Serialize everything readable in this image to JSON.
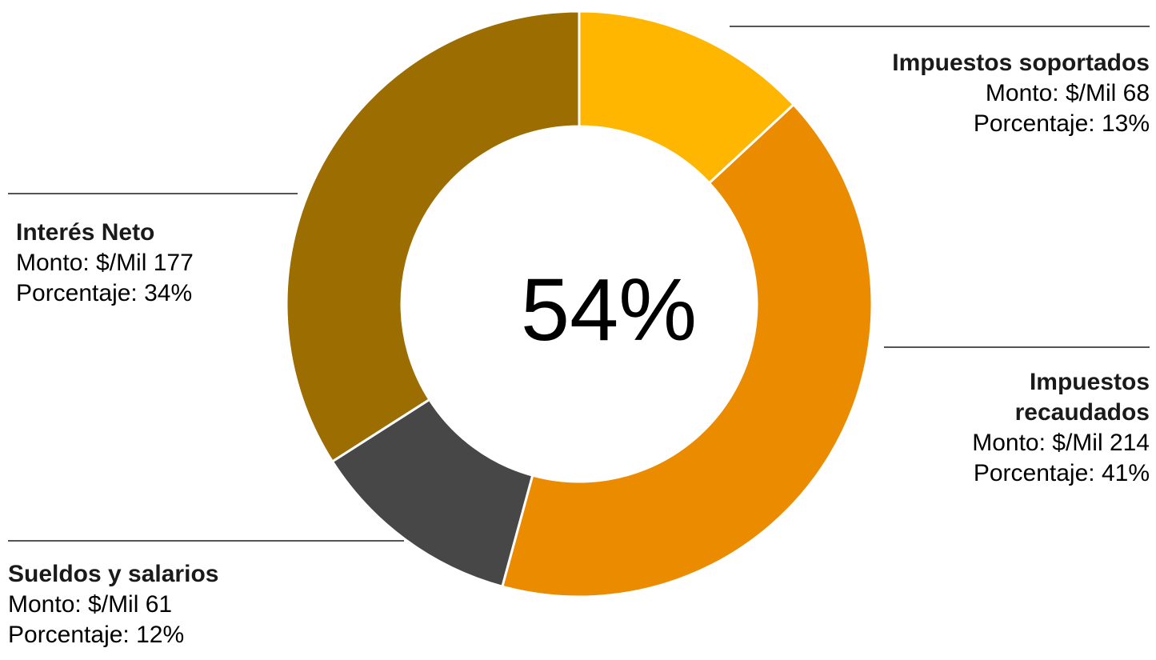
{
  "chart_data": {
    "type": "pie",
    "variant": "donut",
    "center_label": "54%",
    "amount_prefix": "Monto: ",
    "percent_prefix": "Porcentaje: ",
    "slices": [
      {
        "name": "Impuestos soportados",
        "name_lines": [
          "Impuestos soportados"
        ],
        "amount_text": "Monto: $/Mil 68",
        "percent_text": "Porcentaje: 13%",
        "value": 68,
        "percent": 13,
        "color": "#FFB600"
      },
      {
        "name": "Impuestos recaudados",
        "name_lines": [
          "Impuestos",
          "recaudados"
        ],
        "amount_text": "Monto: $/Mil 214",
        "percent_text": "Porcentaje: 41%",
        "value": 214,
        "percent": 41,
        "color": "#EB8C00"
      },
      {
        "name": "Sueldos y salarios",
        "name_lines": [
          "Sueldos y salarios"
        ],
        "amount_text": "Monto: $/Mil 61",
        "percent_text": "Porcentaje: 12%",
        "value": 61,
        "percent": 12,
        "color": "#474747"
      },
      {
        "name": "Interés Neto",
        "name_lines": [
          "Interés Neto"
        ],
        "amount_text": "Monto: $/Mil 177",
        "percent_text": "Porcentaje: 34%",
        "value": 177,
        "percent": 34,
        "color": "#9C6D00"
      }
    ],
    "start_angle_deg": 0,
    "direction": "clockwise",
    "separator_color": "#FFFFFF"
  }
}
